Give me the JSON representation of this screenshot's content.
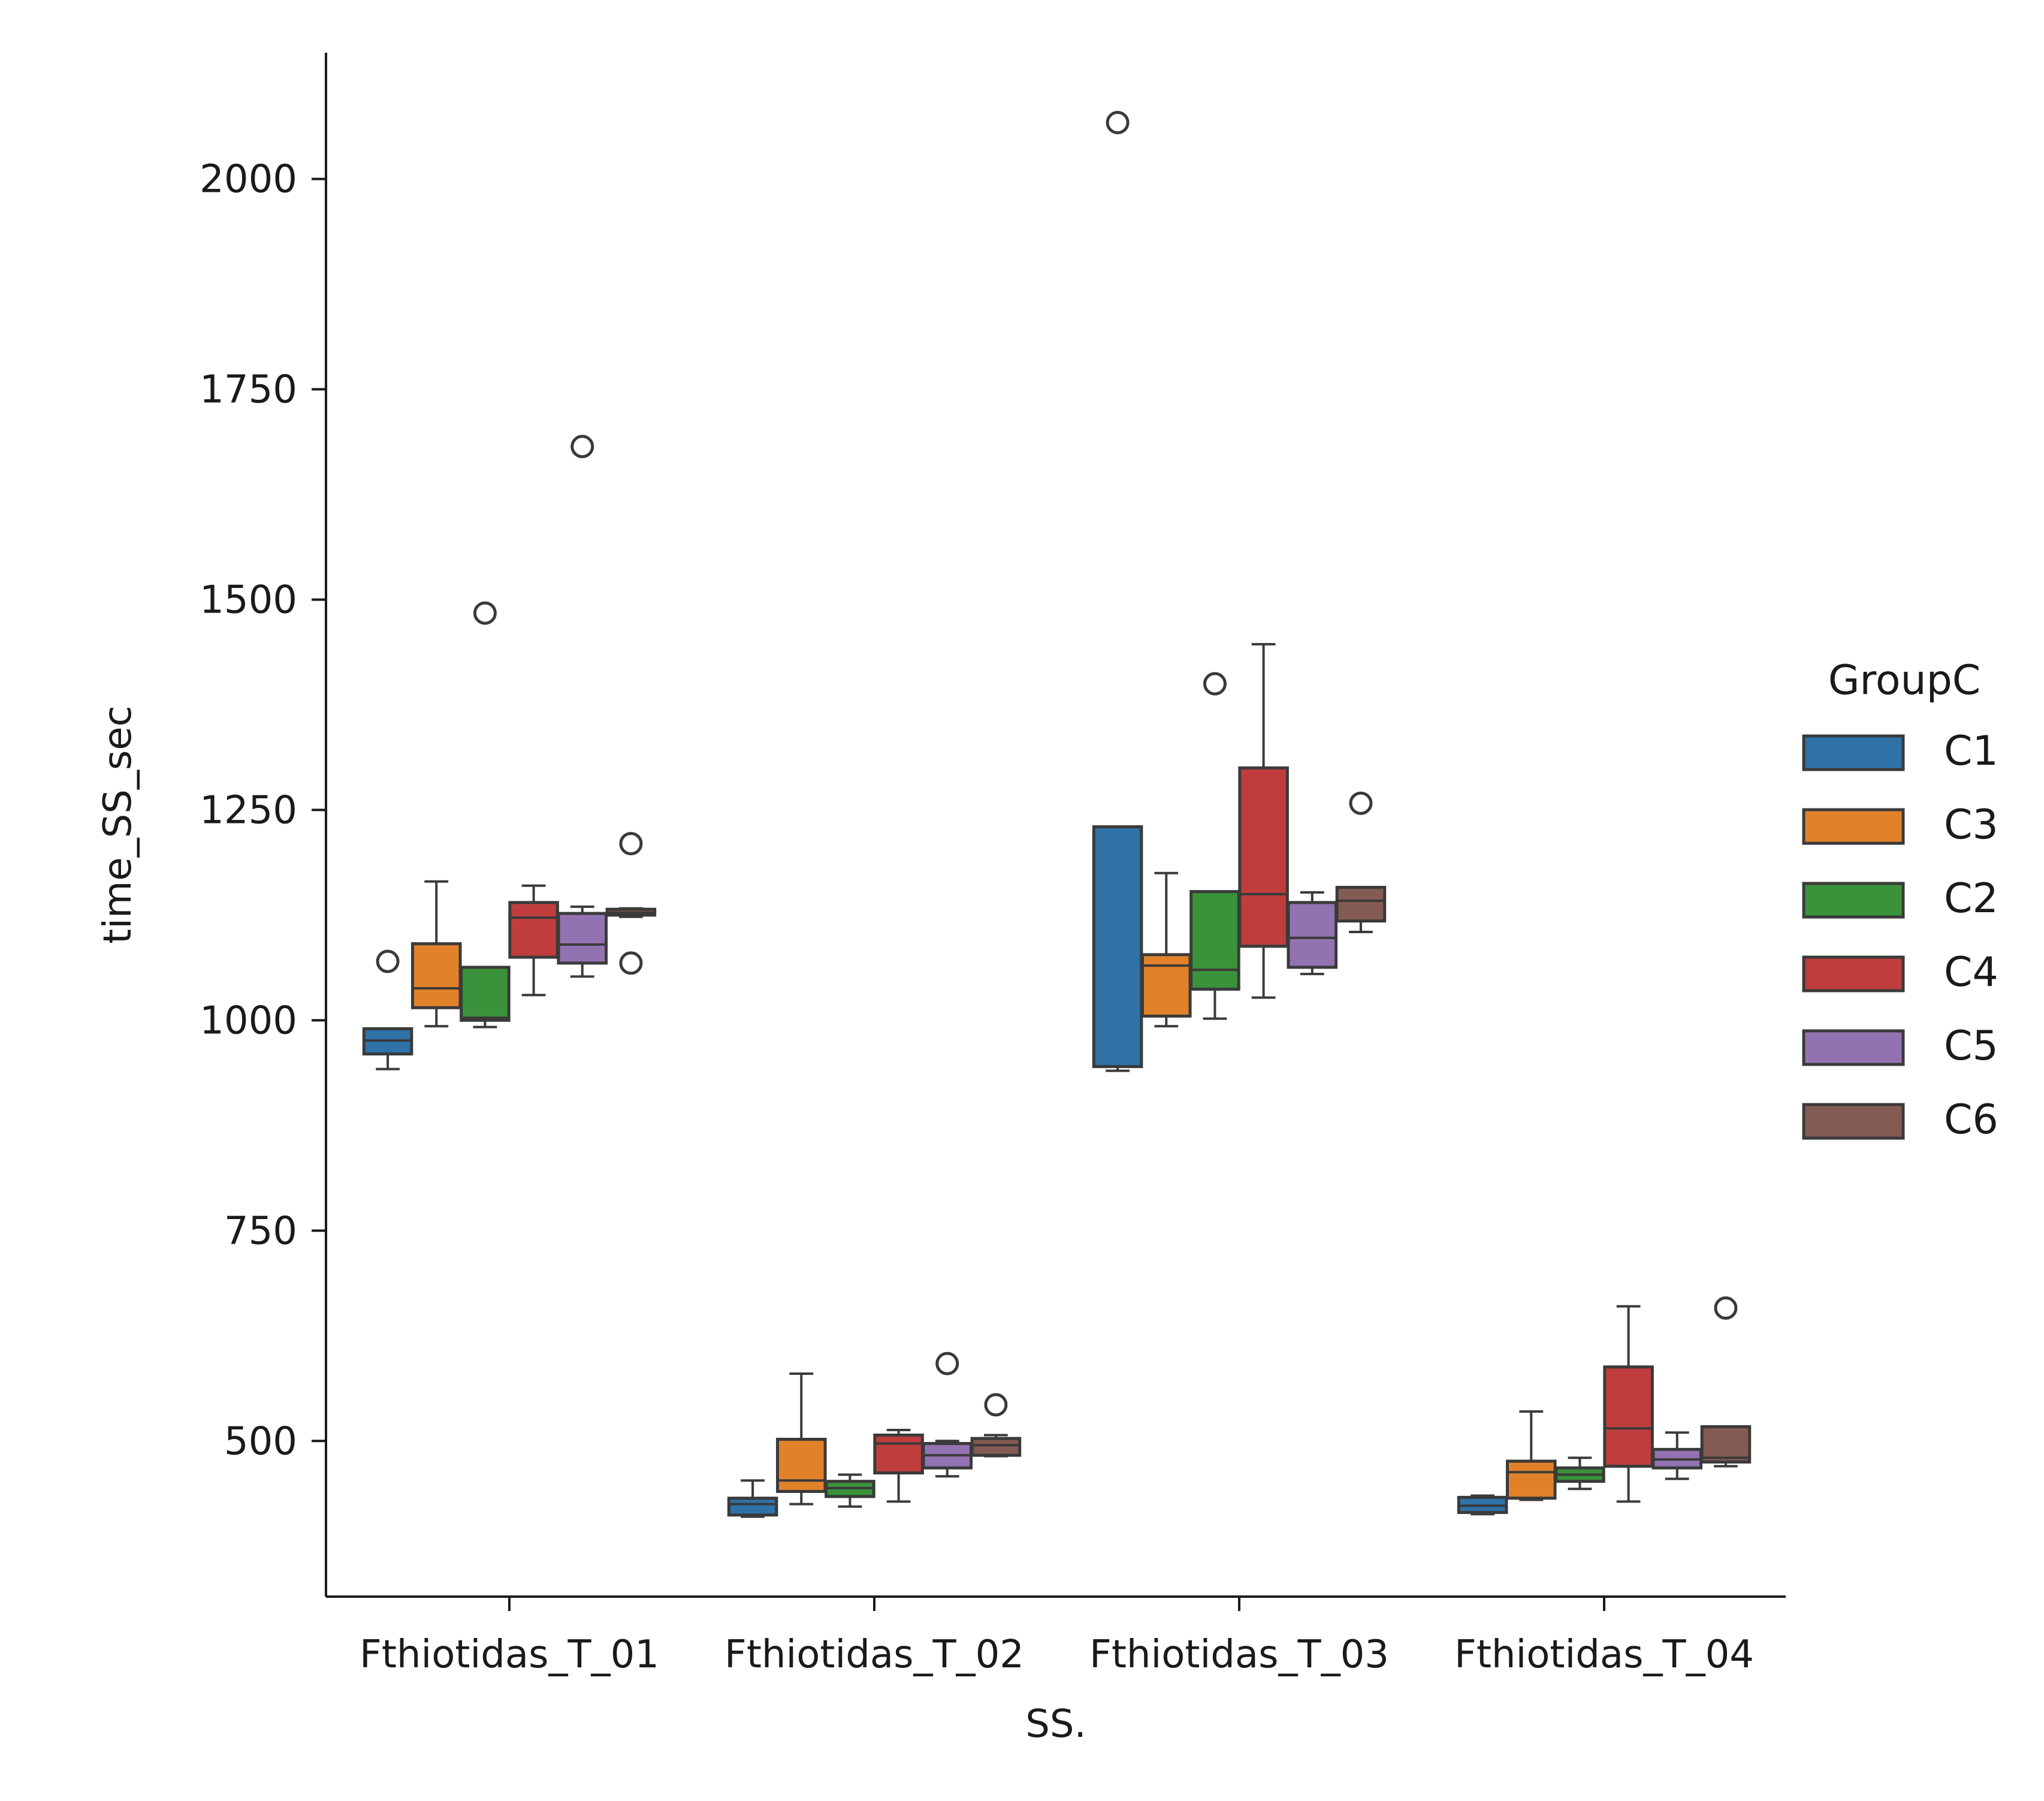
{
  "chart_data": {
    "type": "box",
    "title": "",
    "xlabel": "SS.",
    "ylabel": "time_SS_sec",
    "categories": [
      "Fthiotidas_T_01",
      "Fthiotidas_T_02",
      "Fthiotidas_T_03",
      "Fthiotidas_T_04"
    ],
    "ylim": [
      315,
      2150
    ],
    "yticks": [
      500,
      750,
      1000,
      1250,
      1500,
      1750,
      2000
    ],
    "grid": false,
    "legend": {
      "title": "GroupC",
      "placement": "center-right outside"
    },
    "series": [
      {
        "name": "C1",
        "color": "#2f72a8",
        "boxes": [
          {
            "whislo": 942,
            "q1": 960,
            "med": 976,
            "q3": 990,
            "whishi": 990,
            "fliers": [
              1070
            ]
          },
          {
            "whislo": 410,
            "q1": 412,
            "med": 425,
            "q3": 432,
            "whishi": 453,
            "fliers": []
          },
          {
            "whislo": 940,
            "q1": 945,
            "med": 945,
            "q3": 1230,
            "whishi": 1230,
            "fliers": [
              2067
            ]
          },
          {
            "whislo": 413,
            "q1": 415,
            "med": 423,
            "q3": 433,
            "whishi": 435,
            "fliers": []
          }
        ]
      },
      {
        "name": "C3",
        "color": "#e1822b",
        "boxes": [
          {
            "whislo": 993,
            "q1": 1015,
            "med": 1038,
            "q3": 1091,
            "whishi": 1165,
            "fliers": []
          },
          {
            "whislo": 425,
            "q1": 440,
            "med": 453,
            "q3": 502,
            "whishi": 580,
            "fliers": []
          },
          {
            "whislo": 993,
            "q1": 1005,
            "med": 1065,
            "q3": 1078,
            "whishi": 1175,
            "fliers": []
          },
          {
            "whislo": 430,
            "q1": 432,
            "med": 463,
            "q3": 476,
            "whishi": 535,
            "fliers": []
          }
        ]
      },
      {
        "name": "C2",
        "color": "#3a923a",
        "boxes": [
          {
            "whislo": 992,
            "q1": 1000,
            "med": 1003,
            "q3": 1063,
            "whishi": 1063,
            "fliers": [
              1484
            ]
          },
          {
            "whislo": 422,
            "q1": 434,
            "med": 444,
            "q3": 452,
            "whishi": 460,
            "fliers": []
          },
          {
            "whislo": 1002,
            "q1": 1037,
            "med": 1060,
            "q3": 1153,
            "whishi": 1153,
            "fliers": [
              1400
            ]
          },
          {
            "whislo": 443,
            "q1": 452,
            "med": 460,
            "q3": 468,
            "whishi": 480,
            "fliers": []
          }
        ]
      },
      {
        "name": "C4",
        "color": "#c03d3e",
        "boxes": [
          {
            "whislo": 1030,
            "q1": 1075,
            "med": 1122,
            "q3": 1140,
            "whishi": 1160,
            "fliers": []
          },
          {
            "whislo": 428,
            "q1": 462,
            "med": 497,
            "q3": 507,
            "whishi": 513,
            "fliers": []
          },
          {
            "whislo": 1027,
            "q1": 1088,
            "med": 1150,
            "q3": 1300,
            "whishi": 1447,
            "fliers": []
          },
          {
            "whislo": 428,
            "q1": 470,
            "med": 515,
            "q3": 588,
            "whishi": 660,
            "fliers": []
          }
        ]
      },
      {
        "name": "C5",
        "color": "#9372b2",
        "boxes": [
          {
            "whislo": 1052,
            "q1": 1068,
            "med": 1090,
            "q3": 1127,
            "whishi": 1135,
            "fliers": [
              1682
            ]
          },
          {
            "whislo": 458,
            "q1": 468,
            "med": 483,
            "q3": 497,
            "whishi": 500,
            "fliers": [
              592
            ]
          },
          {
            "whislo": 1055,
            "q1": 1063,
            "med": 1098,
            "q3": 1140,
            "whishi": 1152,
            "fliers": []
          },
          {
            "whislo": 455,
            "q1": 468,
            "med": 478,
            "q3": 490,
            "whishi": 510,
            "fliers": []
          }
        ]
      },
      {
        "name": "C6",
        "color": "#845b53",
        "boxes": [
          {
            "whislo": 1123,
            "q1": 1125,
            "med": 1128,
            "q3": 1132,
            "whishi": 1133,
            "fliers": [
              1068,
              1210
            ]
          },
          {
            "whislo": 482,
            "q1": 483,
            "med": 495,
            "q3": 503,
            "whishi": 507,
            "fliers": [
              543
            ]
          },
          {
            "whislo": 1105,
            "q1": 1118,
            "med": 1142,
            "q3": 1158,
            "whishi": 1158,
            "fliers": [
              1258
            ]
          },
          {
            "whislo": 470,
            "q1": 475,
            "med": 480,
            "q3": 517,
            "whishi": 517,
            "fliers": [
              658
            ]
          }
        ]
      }
    ]
  }
}
